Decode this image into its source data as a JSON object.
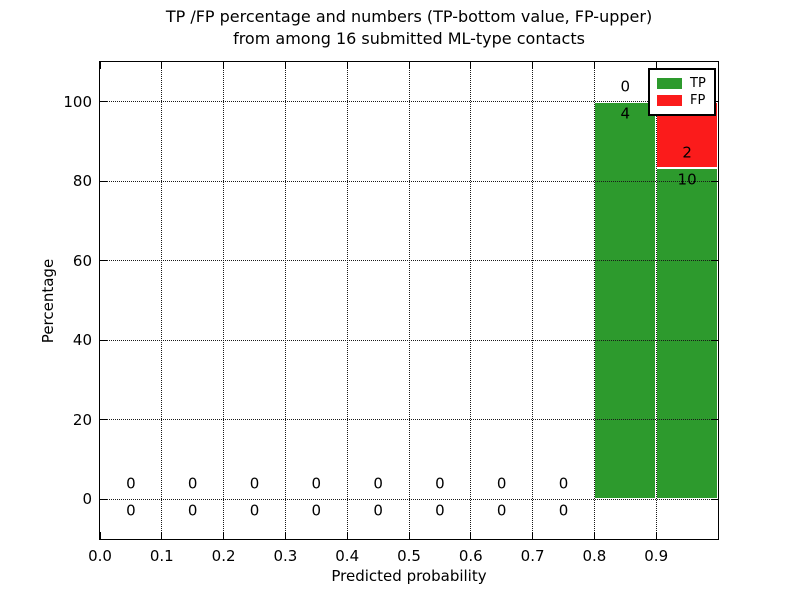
{
  "chart_data": {
    "type": "bar",
    "stacked": true,
    "title_lines": [
      "TP /FP percentage and numbers (TP-bottom value, FP-upper)",
      "from among 16 submitted ML-type contacts"
    ],
    "xlabel": "Predicted probability",
    "ylabel": "Percentage",
    "xlim": [
      0.0,
      1.0
    ],
    "ylim": [
      -10,
      110
    ],
    "xticks": [
      0.0,
      0.1,
      0.2,
      0.3,
      0.4,
      0.5,
      0.6,
      0.7,
      0.8,
      0.9
    ],
    "xtick_labels": [
      "0.0",
      "0.1",
      "0.2",
      "0.3",
      "0.4",
      "0.5",
      "0.6",
      "0.7",
      "0.8",
      "0.9"
    ],
    "yticks": [
      0,
      20,
      40,
      60,
      80,
      100
    ],
    "ytick_labels": [
      "0",
      "20",
      "40",
      "60",
      "80",
      "100"
    ],
    "grid": {
      "style": "dotted",
      "on": true
    },
    "total_contacts": 16,
    "colors": {
      "tp": "#2d9a2d",
      "fp": "#fb1b1b",
      "bar_edge": "#ffffff"
    },
    "bin_edges": [
      0.0,
      0.1,
      0.2,
      0.3,
      0.4,
      0.5,
      0.6,
      0.7,
      0.8,
      0.9,
      1.0
    ],
    "series": [
      {
        "name": "TP",
        "position": "bottom",
        "values_pct": [
          0,
          0,
          0,
          0,
          0,
          0,
          0,
          0,
          100,
          83.33
        ],
        "counts": [
          0,
          0,
          0,
          0,
          0,
          0,
          0,
          0,
          4,
          10
        ]
      },
      {
        "name": "FP",
        "position": "top",
        "values_pct": [
          0,
          0,
          0,
          0,
          0,
          0,
          0,
          0,
          0,
          16.67
        ],
        "counts": [
          0,
          0,
          0,
          0,
          0,
          0,
          0,
          0,
          0,
          2
        ]
      }
    ],
    "legend": {
      "position": "upper right",
      "entries": [
        {
          "label": "TP",
          "color": "#2d9a2d"
        },
        {
          "label": "FP",
          "color": "#fb1b1b"
        }
      ]
    }
  }
}
